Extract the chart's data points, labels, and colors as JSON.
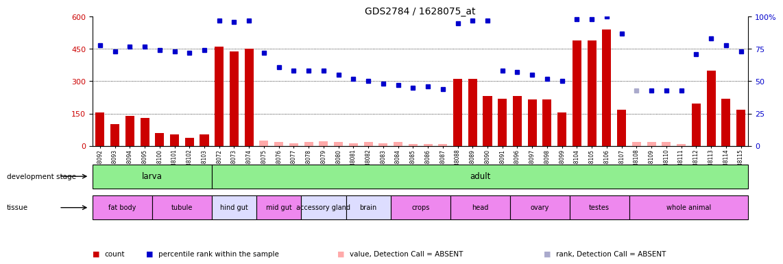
{
  "title": "GDS2784 / 1628075_at",
  "samples": [
    "GSM188092",
    "GSM188093",
    "GSM188094",
    "GSM188095",
    "GSM188100",
    "GSM188101",
    "GSM188102",
    "GSM188103",
    "GSM188072",
    "GSM188073",
    "GSM188074",
    "GSM188075",
    "GSM188076",
    "GSM188077",
    "GSM188078",
    "GSM188079",
    "GSM188080",
    "GSM188081",
    "GSM188082",
    "GSM188083",
    "GSM188084",
    "GSM188085",
    "GSM188086",
    "GSM188087",
    "GSM188088",
    "GSM188089",
    "GSM188090",
    "GSM188091",
    "GSM188096",
    "GSM188097",
    "GSM188098",
    "GSM188099",
    "GSM188104",
    "GSM188105",
    "GSM188106",
    "GSM188107",
    "GSM188108",
    "GSM188109",
    "GSM188110",
    "GSM188111",
    "GSM188112",
    "GSM188113",
    "GSM188114",
    "GSM188115"
  ],
  "counts": [
    155,
    100,
    140,
    130,
    58,
    52,
    38,
    52,
    460,
    440,
    450,
    25,
    18,
    12,
    18,
    22,
    18,
    12,
    18,
    12,
    18,
    10,
    8,
    8,
    310,
    310,
    230,
    220,
    230,
    215,
    215,
    155,
    490,
    490,
    540,
    168,
    18,
    18,
    18,
    8,
    198,
    350,
    218,
    168
  ],
  "percentiles": [
    78,
    73,
    77,
    77,
    74,
    73,
    72,
    74,
    97,
    96,
    97,
    72,
    61,
    58,
    58,
    58,
    55,
    52,
    50,
    48,
    47,
    45,
    46,
    44,
    95,
    97,
    97,
    58,
    57,
    55,
    52,
    50,
    98,
    98,
    100,
    87,
    43,
    43,
    43,
    43,
    71,
    83,
    78,
    73
  ],
  "absent_count_indices": [
    11,
    12,
    13,
    14,
    15,
    16,
    17,
    18,
    19,
    20,
    21,
    22,
    23,
    36,
    37,
    38,
    39
  ],
  "absent_rank_indices": [
    36
  ],
  "bar_color": "#cc0000",
  "bar_color_absent": "#ffaaaa",
  "dot_color": "#0000cc",
  "dot_color_absent": "#aaaacc",
  "ylim_left": [
    0,
    600
  ],
  "ylim_right": [
    0,
    100
  ],
  "yticks_left": [
    0,
    150,
    300,
    450,
    600
  ],
  "yticks_right": [
    0,
    25,
    50,
    75,
    100
  ],
  "dev_stage_groups": [
    {
      "label": "larva",
      "start": 0,
      "end": 8,
      "color": "#90ee90"
    },
    {
      "label": "adult",
      "start": 8,
      "end": 44,
      "color": "#90ee90"
    }
  ],
  "tissue_groups": [
    {
      "label": "fat body",
      "start": 0,
      "end": 4,
      "color": "#ee88ee"
    },
    {
      "label": "tubule",
      "start": 4,
      "end": 8,
      "color": "#ee88ee"
    },
    {
      "label": "hind gut",
      "start": 8,
      "end": 11,
      "color": "#ddddff"
    },
    {
      "label": "mid gut",
      "start": 11,
      "end": 14,
      "color": "#ee88ee"
    },
    {
      "label": "accessory gland",
      "start": 14,
      "end": 17,
      "color": "#ddddff"
    },
    {
      "label": "brain",
      "start": 17,
      "end": 20,
      "color": "#ddddff"
    },
    {
      "label": "crops",
      "start": 20,
      "end": 24,
      "color": "#ee88ee"
    },
    {
      "label": "head",
      "start": 24,
      "end": 28,
      "color": "#ee88ee"
    },
    {
      "label": "ovary",
      "start": 28,
      "end": 32,
      "color": "#ee88ee"
    },
    {
      "label": "testes",
      "start": 32,
      "end": 36,
      "color": "#ee88ee"
    },
    {
      "label": "whole animal",
      "start": 36,
      "end": 44,
      "color": "#ee88ee"
    }
  ],
  "legend_items": [
    {
      "label": "count",
      "color": "#cc0000"
    },
    {
      "label": "percentile rank within the sample",
      "color": "#0000cc"
    },
    {
      "label": "value, Detection Call = ABSENT",
      "color": "#ffaaaa"
    },
    {
      "label": "rank, Detection Call = ABSENT",
      "color": "#aaaacc"
    }
  ]
}
